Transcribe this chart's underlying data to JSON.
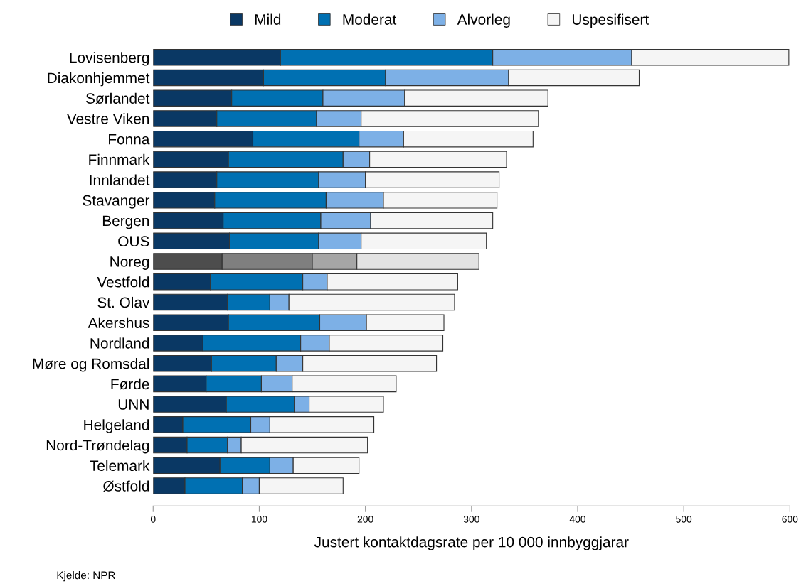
{
  "chart_data": {
    "type": "bar",
    "orientation": "horizontal",
    "stacked": true,
    "xlabel": "Justert kontaktdagsrate per 10 000 innbyggjarar",
    "categories": [
      "Lovisenberg",
      "Diakonhjemmet",
      "Sørlandet",
      "Vestre Viken",
      "Fonna",
      "Finnmark",
      "Innlandet",
      "Stavanger",
      "Bergen",
      "OUS",
      "Noreg",
      "Vestfold",
      "St. Olav",
      "Akershus",
      "Nordland",
      "Møre og Romsdal",
      "Førde",
      "UNN",
      "Helgeland",
      "Nord-Trøndelag",
      "Telemark",
      "Østfold"
    ],
    "series": [
      {
        "name": "Mild",
        "color": "#0a3864",
        "colors": [
          "#0a3864",
          "#0a3864",
          "#0a3864",
          "#0a3864",
          "#0a3864",
          "#0a3864",
          "#0a3864",
          "#0a3864",
          "#0a3864",
          "#0a3864",
          "#4d4d4d",
          "#0a3864",
          "#0a3864",
          "#0a3864",
          "#0a3864",
          "#0a3864",
          "#0a3864",
          "#0a3864",
          "#0a3864",
          "#0a3864",
          "#0a3864",
          "#0a3864"
        ],
        "values": [
          120,
          104,
          74,
          60,
          94,
          71,
          60,
          58,
          66,
          72,
          65,
          54,
          70,
          71,
          47,
          55,
          50,
          69,
          28,
          32,
          63,
          30
        ]
      },
      {
        "name": "Moderat",
        "color": "#0070b2",
        "colors": [
          "#0070b2",
          "#0070b2",
          "#0070b2",
          "#0070b2",
          "#0070b2",
          "#0070b2",
          "#0070b2",
          "#0070b2",
          "#0070b2",
          "#0070b2",
          "#7f7f7f",
          "#0070b2",
          "#0070b2",
          "#0070b2",
          "#0070b2",
          "#0070b2",
          "#0070b2",
          "#0070b2",
          "#0070b2",
          "#0070b2",
          "#0070b2",
          "#0070b2"
        ],
        "values": [
          200,
          115,
          86,
          94,
          100,
          108,
          96,
          105,
          92,
          84,
          85,
          87,
          40,
          86,
          92,
          61,
          52,
          64,
          64,
          38,
          47,
          54
        ]
      },
      {
        "name": "Alvorleg",
        "color": "#7db0e6",
        "colors": [
          "#7db0e6",
          "#7db0e6",
          "#7db0e6",
          "#7db0e6",
          "#7db0e6",
          "#7db0e6",
          "#7db0e6",
          "#7db0e6",
          "#7db0e6",
          "#7db0e6",
          "#a6a6a6",
          "#7db0e6",
          "#7db0e6",
          "#7db0e6",
          "#7db0e6",
          "#7db0e6",
          "#7db0e6",
          "#7db0e6",
          "#7db0e6",
          "#7db0e6",
          "#7db0e6",
          "#7db0e6"
        ],
        "values": [
          131,
          116,
          77,
          42,
          42,
          25,
          44,
          54,
          47,
          40,
          42,
          23,
          18,
          44,
          27,
          25,
          29,
          14,
          18,
          13,
          22,
          16
        ]
      },
      {
        "name": "Uspesifisert",
        "color": "#f5f5f5",
        "colors": [
          "#f5f5f5",
          "#f5f5f5",
          "#f5f5f5",
          "#f5f5f5",
          "#f5f5f5",
          "#f5f5f5",
          "#f5f5f5",
          "#f5f5f5",
          "#f5f5f5",
          "#f5f5f5",
          "#e3e3e3",
          "#f5f5f5",
          "#f5f5f5",
          "#f5f5f5",
          "#f5f5f5",
          "#f5f5f5",
          "#f5f5f5",
          "#f5f5f5",
          "#f5f5f5",
          "#f5f5f5",
          "#f5f5f5",
          "#f5f5f5"
        ],
        "values": [
          148,
          123,
          135,
          167,
          122,
          129,
          126,
          107,
          115,
          118,
          115,
          123,
          156,
          73,
          107,
          126,
          98,
          70,
          98,
          119,
          62,
          79
        ]
      }
    ],
    "xlim": [
      0,
      600
    ],
    "xticks": [
      0,
      100,
      200,
      300,
      400,
      500,
      600
    ],
    "legend": "top",
    "grid": false,
    "annotations": [
      "Kjelde: NPR"
    ]
  }
}
